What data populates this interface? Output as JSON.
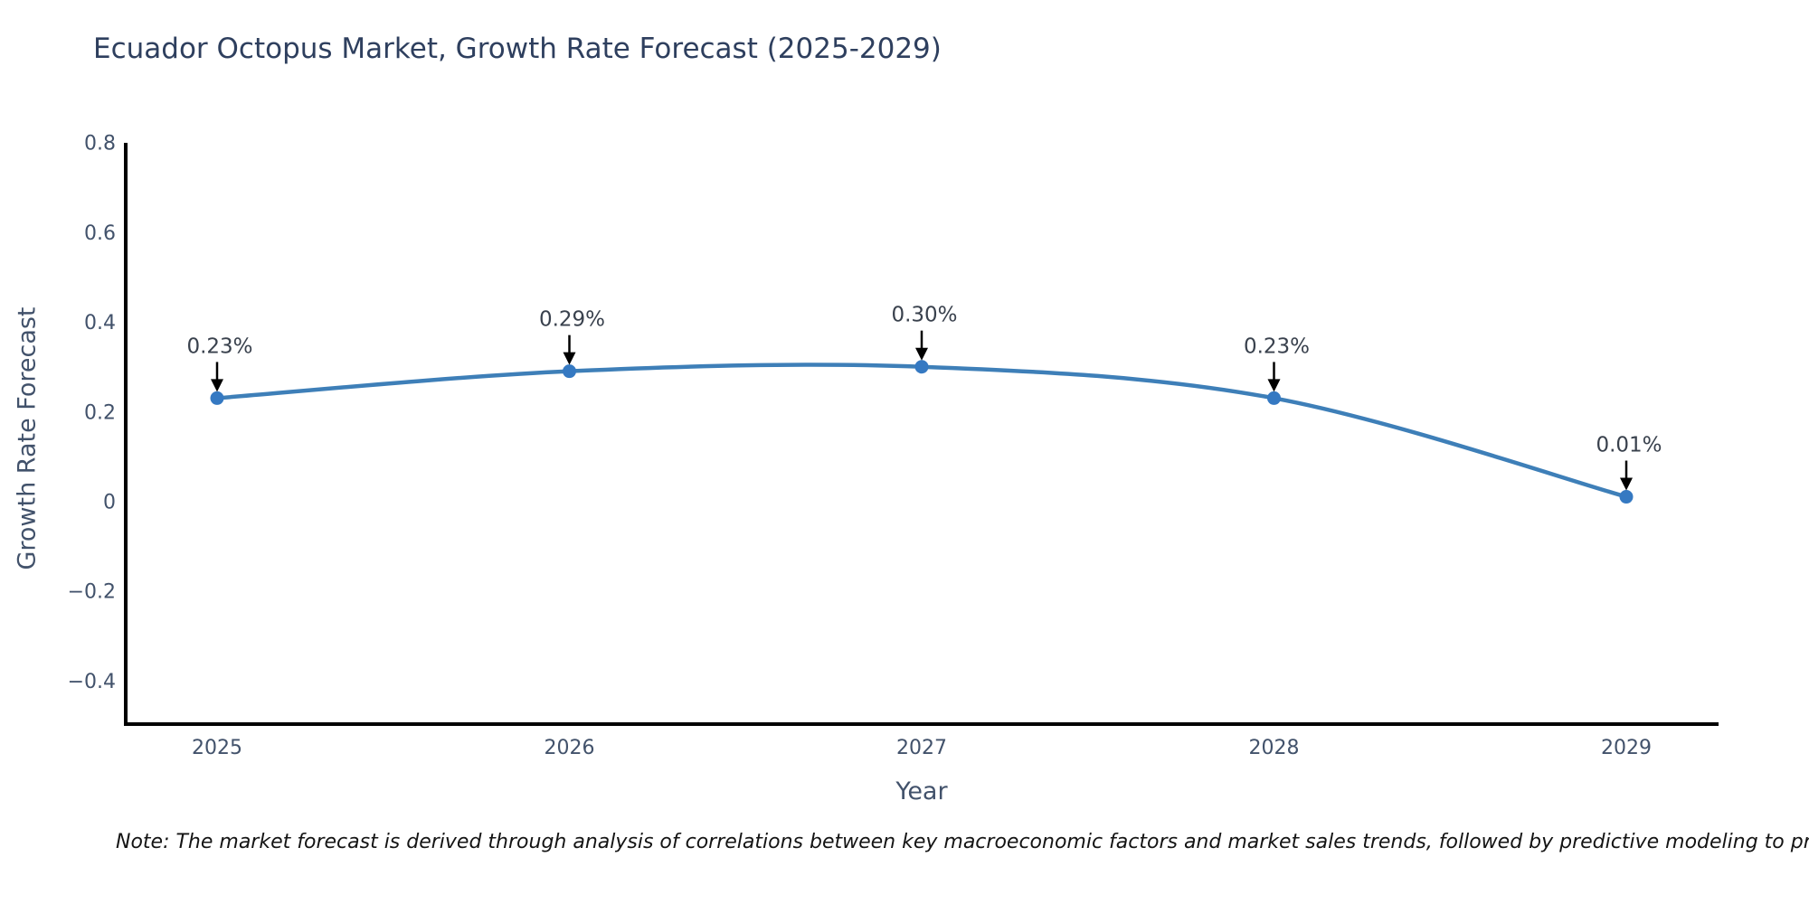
{
  "colors": {
    "title_text": "#2e3f5e",
    "axis_text": "#42526b",
    "annotation_text": "#39414d",
    "spine": "#000000",
    "line": "#3e7fb8",
    "marker": "#3579c2",
    "arrow": "#000000"
  },
  "note": {
    "text": "Note: The market forecast is derived through analysis of correlations between key macroeconomic factors and market sales trends, followed by predictive modeling to project future sa"
  },
  "chart_data": {
    "type": "line",
    "title": "Ecuador Octopus Market, Growth Rate Forecast (2025-2029)",
    "xlabel": "Year",
    "ylabel": "Growth Rate Forecast",
    "x": [
      "2025",
      "2026",
      "2027",
      "2028",
      "2029"
    ],
    "values": [
      0.23,
      0.29,
      0.3,
      0.23,
      0.01
    ],
    "point_labels": [
      "0.23%",
      "0.29%",
      "0.30%",
      "0.23%",
      "0.01%"
    ],
    "ylim": [
      -0.5,
      0.8
    ],
    "yticks": [
      {
        "v": 0.8,
        "label": "0.8"
      },
      {
        "v": 0.6,
        "label": "0.6"
      },
      {
        "v": 0.4,
        "label": "0.4"
      },
      {
        "v": 0.2,
        "label": "0.2"
      },
      {
        "v": 0.0,
        "label": "0"
      },
      {
        "v": -0.2,
        "label": "−0.2"
      },
      {
        "v": -0.4,
        "label": "−0.4"
      }
    ],
    "grid": false,
    "legend": "none",
    "marker": "circle",
    "annotations": "value labels with downward arrows above each point"
  }
}
